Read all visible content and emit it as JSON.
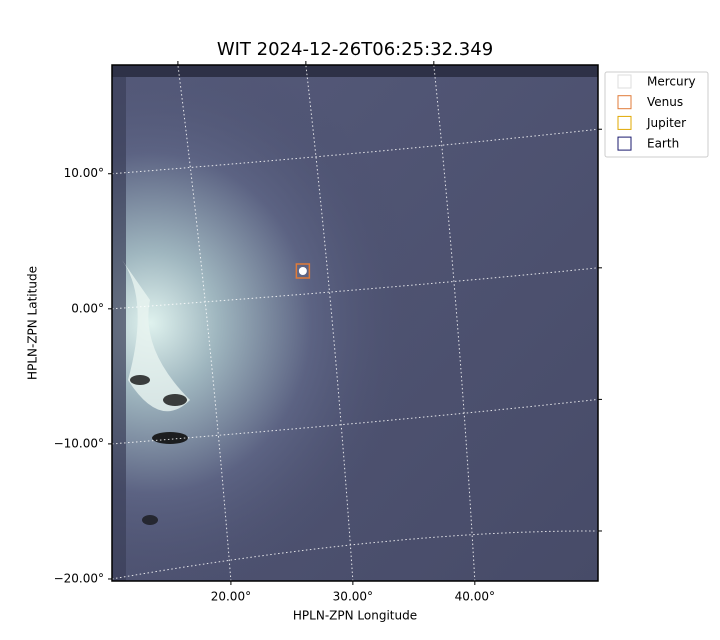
{
  "chart_data": {
    "type": "image",
    "title": "WIT 2024-12-26T06:25:32.349",
    "xlabel": "HPLN-ZPN Longitude",
    "ylabel": "HPLN-ZPN Latitude",
    "xlim": [
      10.25,
      50.1
    ],
    "ylim": [
      -20.15,
      18.05
    ],
    "xticks": [
      {
        "value": 20,
        "label": "20.00°"
      },
      {
        "value": 30,
        "label": "30.00°"
      },
      {
        "value": 40,
        "label": "40.00°"
      }
    ],
    "yticks": [
      {
        "value": -20,
        "label": "−20.00°"
      },
      {
        "value": -10,
        "label": "−10.00°"
      },
      {
        "value": 0,
        "label": "0.00°"
      },
      {
        "value": 10,
        "label": "10.00°"
      }
    ],
    "grid": true,
    "legend": "outside upper right",
    "series": [
      {
        "name": "Mercury",
        "color": "#dddddd"
      },
      {
        "name": "Venus",
        "color": "#e07b39",
        "x": [
          25.9
        ],
        "y": [
          2.8
        ]
      },
      {
        "name": "Jupiter",
        "color": "#e0a800"
      },
      {
        "name": "Earth",
        "color": "#1a1a6e"
      }
    ]
  }
}
